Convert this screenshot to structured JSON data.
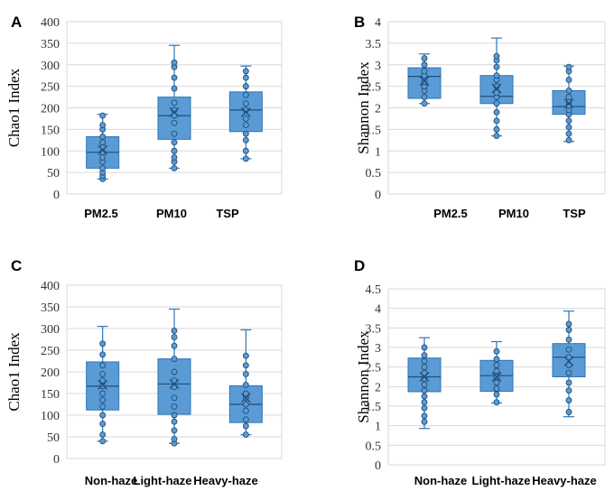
{
  "colors": {
    "box_fill": "#5b9bd5",
    "box_stroke": "#2e75b6",
    "point_fill": "#5b9bd5",
    "point_stroke": "#1f4e79"
  },
  "chart_data": [
    {
      "type": "boxplot",
      "panel_label": "A",
      "ylabel": "Chao1 Index",
      "ylim": [
        0,
        400
      ],
      "yticks": [
        "0",
        "50",
        "100",
        "150",
        "200",
        "250",
        "300",
        "350",
        "400"
      ],
      "categories": [
        "PM2.5",
        "PM10",
        "TSP"
      ],
      "boxes": [
        {
          "min": 35,
          "q1": 60,
          "median": 97,
          "q3": 133,
          "max": 185,
          "mean": 102,
          "points": [
            35,
            42,
            50,
            60,
            75,
            85,
            97,
            110,
            120,
            133,
            150,
            160,
            182
          ]
        },
        {
          "min": 60,
          "q1": 127,
          "median": 182,
          "q3": 225,
          "max": 345,
          "mean": 190,
          "points": [
            60,
            75,
            85,
            100,
            120,
            140,
            165,
            182,
            195,
            212,
            245,
            270,
            295,
            305
          ]
        },
        {
          "min": 82,
          "q1": 145,
          "median": 195,
          "q3": 237,
          "max": 297,
          "mean": 190,
          "points": [
            82,
            100,
            125,
            140,
            160,
            175,
            195,
            210,
            230,
            250,
            270,
            285
          ]
        }
      ]
    },
    {
      "type": "boxplot",
      "panel_label": "B",
      "ylabel": "Shannon Index",
      "ylim": [
        0,
        4
      ],
      "yticks": [
        "0",
        "0.5",
        "1",
        "1.5",
        "2",
        "2.5",
        "3",
        "3.5",
        "4"
      ],
      "categories": [
        "PM2.5",
        "PM10",
        "TSP"
      ],
      "boxes": [
        {
          "min": 2.1,
          "q1": 2.22,
          "median": 2.73,
          "q3": 2.93,
          "max": 3.25,
          "mean": 2.62,
          "points": [
            2.1,
            2.25,
            2.4,
            2.5,
            2.6,
            2.75,
            2.85,
            3.0,
            3.15
          ]
        },
        {
          "min": 1.35,
          "q1": 2.1,
          "median": 2.27,
          "q3": 2.75,
          "max": 3.62,
          "mean": 2.45,
          "points": [
            1.35,
            1.5,
            1.7,
            1.9,
            2.1,
            2.25,
            2.35,
            2.5,
            2.65,
            2.75,
            2.95,
            3.1,
            3.2
          ]
        },
        {
          "min": 1.22,
          "q1": 1.85,
          "median": 2.03,
          "q3": 2.4,
          "max": 2.97,
          "mean": 2.1,
          "points": [
            1.25,
            1.4,
            1.55,
            1.7,
            1.85,
            1.95,
            2.05,
            2.15,
            2.25,
            2.4,
            2.65,
            2.85,
            2.95
          ]
        }
      ]
    },
    {
      "type": "boxplot",
      "panel_label": "C",
      "ylabel": "Chao1 Index",
      "ylim": [
        0,
        400
      ],
      "yticks": [
        "0",
        "50",
        "100",
        "150",
        "200",
        "250",
        "300",
        "350",
        "400"
      ],
      "categories": [
        "Non-haze",
        "Light-haze",
        "Heavy-haze"
      ],
      "boxes": [
        {
          "min": 40,
          "q1": 112,
          "median": 167,
          "q3": 223,
          "max": 305,
          "mean": 170,
          "points": [
            40,
            55,
            80,
            100,
            120,
            135,
            150,
            167,
            180,
            195,
            215,
            240,
            265
          ]
        },
        {
          "min": 35,
          "q1": 102,
          "median": 172,
          "q3": 230,
          "max": 345,
          "mean": 172,
          "points": [
            35,
            45,
            65,
            85,
            100,
            120,
            140,
            165,
            180,
            200,
            230,
            260,
            280,
            295
          ]
        },
        {
          "min": 55,
          "q1": 83,
          "median": 125,
          "q3": 168,
          "max": 297,
          "mean": 140,
          "points": [
            55,
            75,
            90,
            110,
            125,
            140,
            150,
            170,
            195,
            215,
            237
          ]
        }
      ]
    },
    {
      "type": "boxplot",
      "panel_label": "D",
      "ylabel": "Shannon Index",
      "ylim": [
        0,
        4.5
      ],
      "yticks": [
        "0",
        "0.5",
        "1",
        "1.5",
        "2",
        "2.5",
        "3",
        "3.5",
        "4",
        "4.5"
      ],
      "categories": [
        "Non-haze",
        "Light-haze",
        "Heavy-haze"
      ],
      "boxes": [
        {
          "min": 0.93,
          "q1": 1.87,
          "median": 2.25,
          "q3": 2.73,
          "max": 3.25,
          "mean": 2.25,
          "points": [
            1.1,
            1.25,
            1.45,
            1.6,
            1.75,
            1.9,
            2.05,
            2.2,
            2.35,
            2.5,
            2.65,
            2.8,
            3.0
          ]
        },
        {
          "min": 1.58,
          "q1": 1.88,
          "median": 2.28,
          "q3": 2.67,
          "max": 3.15,
          "mean": 2.25,
          "points": [
            1.6,
            1.8,
            1.95,
            2.1,
            2.25,
            2.4,
            2.55,
            2.7,
            2.9
          ]
        },
        {
          "min": 1.23,
          "q1": 2.25,
          "median": 2.75,
          "q3": 3.1,
          "max": 3.93,
          "mean": 2.65,
          "points": [
            1.35,
            1.65,
            1.9,
            2.1,
            2.35,
            2.55,
            2.75,
            2.95,
            3.2,
            3.45,
            3.6
          ]
        }
      ]
    }
  ]
}
